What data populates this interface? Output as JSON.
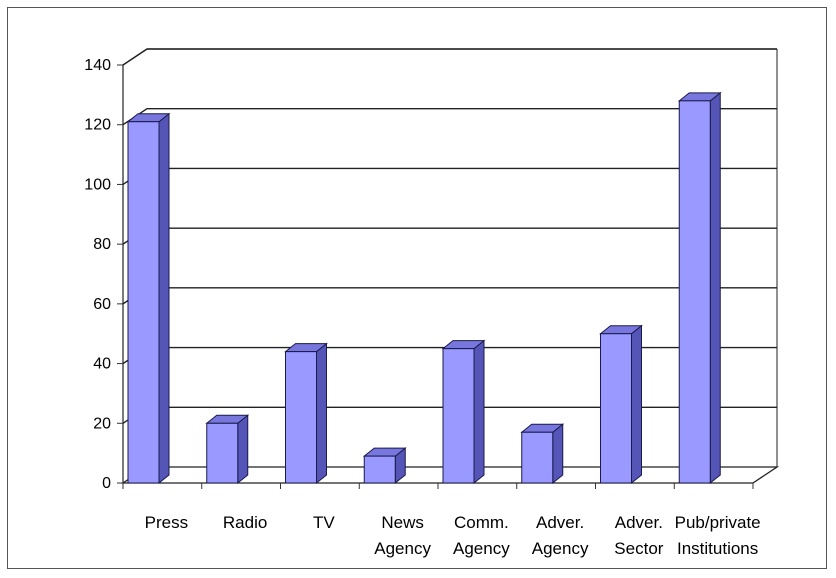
{
  "chart_data": {
    "type": "bar",
    "categories": [
      "Press",
      "Radio",
      "TV",
      "News Agency",
      "Comm. Agency",
      "Adver. Agency",
      "Adver. Sector",
      "Pub/private Institutions"
    ],
    "category_lines": [
      [
        "Press"
      ],
      [
        "Radio"
      ],
      [
        "TV"
      ],
      [
        "News",
        "Agency"
      ],
      [
        "Comm.",
        "Agency"
      ],
      [
        "Adver.",
        "Agency"
      ],
      [
        "Adver.",
        "Sector"
      ],
      [
        "Pub/private",
        "Institutions"
      ]
    ],
    "values": [
      121,
      20,
      44,
      9,
      45,
      17,
      50,
      128
    ],
    "title": "",
    "xlabel": "",
    "ylabel": "",
    "ylim": [
      0,
      140
    ],
    "yticks": [
      "0",
      "20",
      "40",
      "60",
      "80",
      "100",
      "120",
      "140"
    ],
    "grid": true,
    "legend": "none",
    "style": "3d-column",
    "colors": {
      "bar_front": "#9999ff",
      "bar_side": "#5555b8",
      "bar_top": "#7777dd",
      "edge": "#1a1a4d"
    }
  }
}
